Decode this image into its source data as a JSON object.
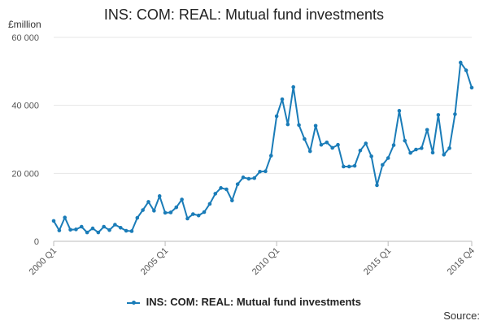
{
  "chart_data": {
    "type": "line",
    "title": "INS: COM: REAL: Mutual fund investments",
    "unit_label": "£million",
    "source_label": "Source:",
    "ylim": [
      0,
      60000
    ],
    "yticks": [
      0,
      20000,
      40000,
      60000
    ],
    "ytick_labels": [
      "0",
      "20 000",
      "40 000",
      "60 000"
    ],
    "grid": true,
    "legend_position": "bottom-center",
    "xtick_labels": [
      {
        "index": 0,
        "label": "2000 Q1"
      },
      {
        "index": 20,
        "label": "2005 Q1"
      },
      {
        "index": 40,
        "label": "2010 Q1"
      },
      {
        "index": 60,
        "label": "2015 Q1"
      },
      {
        "index": 75,
        "label": "2018 Q4"
      }
    ],
    "series": [
      {
        "name": "INS: COM: REAL: Mutual fund investments",
        "color": "#1a7cb8",
        "x": [
          "2000 Q1",
          "2000 Q2",
          "2000 Q3",
          "2000 Q4",
          "2001 Q1",
          "2001 Q2",
          "2001 Q3",
          "2001 Q4",
          "2002 Q1",
          "2002 Q2",
          "2002 Q3",
          "2002 Q4",
          "2003 Q1",
          "2003 Q2",
          "2003 Q3",
          "2003 Q4",
          "2004 Q1",
          "2004 Q2",
          "2004 Q3",
          "2004 Q4",
          "2005 Q1",
          "2005 Q2",
          "2005 Q3",
          "2005 Q4",
          "2006 Q1",
          "2006 Q2",
          "2006 Q3",
          "2006 Q4",
          "2007 Q1",
          "2007 Q2",
          "2007 Q3",
          "2007 Q4",
          "2008 Q1",
          "2008 Q2",
          "2008 Q3",
          "2008 Q4",
          "2009 Q1",
          "2009 Q2",
          "2009 Q3",
          "2009 Q4",
          "2010 Q1",
          "2010 Q2",
          "2010 Q3",
          "2010 Q4",
          "2011 Q1",
          "2011 Q2",
          "2011 Q3",
          "2011 Q4",
          "2012 Q1",
          "2012 Q2",
          "2012 Q3",
          "2012 Q4",
          "2013 Q1",
          "2013 Q2",
          "2013 Q3",
          "2013 Q4",
          "2014 Q1",
          "2014 Q2",
          "2014 Q3",
          "2014 Q4",
          "2015 Q1",
          "2015 Q2",
          "2015 Q3",
          "2015 Q4",
          "2016 Q1",
          "2016 Q2",
          "2016 Q3",
          "2016 Q4",
          "2017 Q1",
          "2017 Q2",
          "2017 Q3",
          "2017 Q4",
          "2018 Q1",
          "2018 Q2",
          "2018 Q3",
          "2018 Q4"
        ],
        "values": [
          6000,
          3200,
          7000,
          3400,
          3500,
          4300,
          2600,
          3800,
          2600,
          4300,
          3300,
          4900,
          4000,
          3100,
          3000,
          6900,
          9200,
          11600,
          9000,
          13300,
          8400,
          8500,
          10000,
          12300,
          6700,
          8000,
          7600,
          8600,
          11000,
          14000,
          15700,
          15300,
          12000,
          16800,
          18800,
          18400,
          18600,
          20500,
          20600,
          25200,
          36800,
          41800,
          34400,
          45400,
          34200,
          30100,
          26500,
          34000,
          28400,
          29100,
          27500,
          28400,
          22000,
          22000,
          22200,
          26700,
          28800,
          25000,
          16500,
          22500,
          24500,
          28300,
          38400,
          29600,
          26000,
          27000,
          27400,
          32800,
          26100,
          37200,
          25500,
          27400,
          37400,
          52600,
          50300,
          45200
        ]
      }
    ]
  }
}
